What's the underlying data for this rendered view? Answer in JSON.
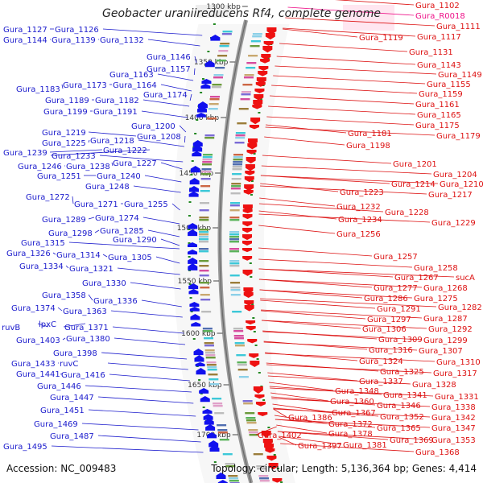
{
  "title": "Geobacter uraniireducens Rf4, complete genome",
  "footer": {
    "accession_label": "Accession:",
    "accession": "NC_009483",
    "topology_label": "Topology:",
    "topology": "circular",
    "length_label": "Length:",
    "length": "5,136,364 bp",
    "genes_label": "Genes:",
    "genes": "4,414"
  },
  "colors": {
    "left_labels": "#1a1acc",
    "right_labels": "#dd1111",
    "rna_label": "#ee1188",
    "forward_genes": "#ee1111",
    "reverse_genes": "#1111ee",
    "backbone": "#9a9a9a",
    "marker": "#228822"
  },
  "ticks": [
    {
      "label": "1300 kbp"
    },
    {
      "label": "1350 kbp"
    },
    {
      "label": "1400 kbp"
    },
    {
      "label": "1450 kbp"
    },
    {
      "label": "1500 kbp"
    },
    {
      "label": "1550 kbp"
    },
    {
      "label": "1600 kbp"
    },
    {
      "label": "1650 kbp"
    },
    {
      "label": "1700 kbp"
    }
  ],
  "left_labels": [
    "Gura_1127",
    "Gura_1126",
    "Gura_1144",
    "Gura_1139",
    "Gura_1132",
    "Gura_1146",
    "Gura_1157",
    "Gura_1163",
    "Gura_1183",
    "Gura_1173",
    "Gura_1164",
    "Gura_1174",
    "Gura_1189",
    "Gura_1182",
    "Gura_1199",
    "Gura_1191",
    "Gura_1200",
    "Gura_1219",
    "Gura_1208",
    "Gura_1225",
    "Gura_1218",
    "Gura_1239",
    "Gura_1222",
    "Gura_1233",
    "Gura_1246",
    "Gura_1238",
    "Gura_1227",
    "Gura_1251",
    "Gura_1240",
    "Gura_1248",
    "Gura_1272",
    "Gura_1271",
    "Gura_1255",
    "Gura_1289",
    "Gura_1274",
    "Gura_1298",
    "Gura_1285",
    "Gura_1290",
    "Gura_1315",
    "Gura_1326",
    "Gura_1314",
    "Gura_1305",
    "Gura_1334",
    "Gura_1321",
    "Gura_1330",
    "Gura_1358",
    "Gura_1336",
    "Gura_1374",
    "Gura_1363",
    "ruvB",
    "lpxC",
    "Gura_1371",
    "Gura_1403",
    "Gura_1380",
    "Gura_1398",
    "Gura_1433",
    "ruvC",
    "Gura_1441",
    "Gura_1416",
    "Gura_1446",
    "Gura_1447",
    "Gura_1451",
    "Gura_1469",
    "Gura_1487",
    "Gura_1495"
  ],
  "right_labels": [
    "Gura_1102",
    "Gura_R0018",
    "Gura_1111",
    "Gura_1119",
    "Gura_1117",
    "Gura_1131",
    "Gura_1143",
    "Gura_1149",
    "Gura_1155",
    "Gura_1159",
    "Gura_1161",
    "Gura_1165",
    "Gura_1175",
    "Gura_1181",
    "Gura_1179",
    "Gura_1198",
    "Gura_1201",
    "Gura_1204",
    "Gura_1214",
    "Gura_1210",
    "Gura_1223",
    "Gura_1217",
    "Gura_1232",
    "Gura_1228",
    "Gura_1234",
    "Gura_1229",
    "Gura_1256",
    "Gura_1257",
    "Gura_1258",
    "Gura_1267",
    "sucA",
    "Gura_1277",
    "Gura_1268",
    "Gura_1286",
    "Gura_1275",
    "Gura_1291",
    "Gura_1282",
    "Gura_1297",
    "Gura_1287",
    "Gura_1306",
    "Gura_1292",
    "Gura_1309",
    "Gura_1299",
    "Gura_1316",
    "Gura_1307",
    "Gura_1324",
    "Gura_1310",
    "Gura_1325",
    "Gura_1317",
    "Gura_1337",
    "Gura_1328",
    "Gura_1348",
    "Gura_1341",
    "Gura_1331",
    "Gura_1360",
    "Gura_1346",
    "Gura_1338",
    "Gura_1367",
    "Gura_1352",
    "Gura_1342",
    "Gura_1386",
    "Gura_1372",
    "Gura_1365",
    "Gura_1347",
    "Gura_1402",
    "Gura_1378",
    "Gura_1369",
    "Gura_1353",
    "Gura_1397",
    "Gura_1381",
    "Gura_1368"
  ]
}
